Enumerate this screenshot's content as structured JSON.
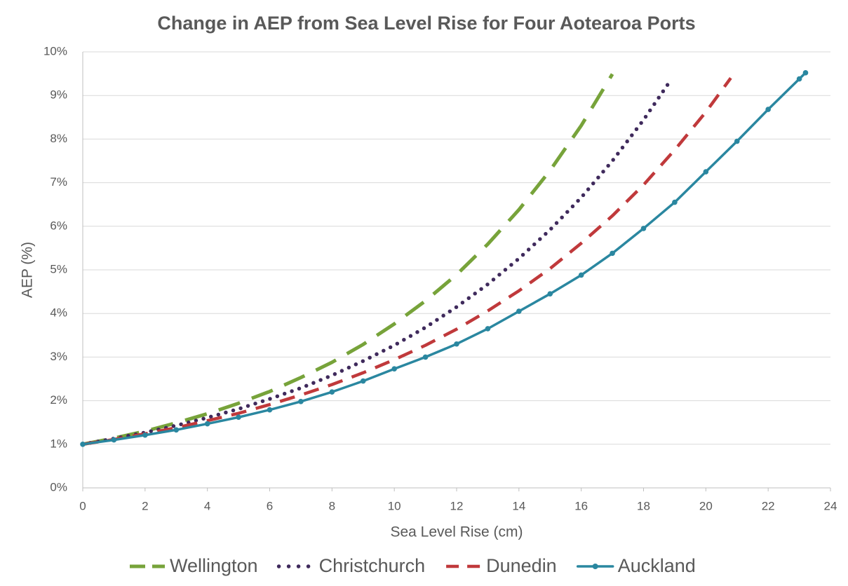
{
  "chart_data": {
    "type": "line",
    "title": "Change in AEP from Sea Level Rise for Four Aotearoa Ports",
    "x_label": "Sea Level Rise (cm)",
    "y_label": "AEP (%)",
    "xlim": [
      0,
      24
    ],
    "xticks": [
      0,
      2,
      4,
      6,
      8,
      10,
      12,
      14,
      16,
      18,
      20,
      22,
      24
    ],
    "ylim": [
      0,
      10
    ],
    "yticks": [
      {
        "value": 0,
        "label": "0%"
      },
      {
        "value": 1,
        "label": "1%"
      },
      {
        "value": 2,
        "label": "2%"
      },
      {
        "value": 3,
        "label": "3%"
      },
      {
        "value": 4,
        "label": "4%"
      },
      {
        "value": 5,
        "label": "5%"
      },
      {
        "value": 6,
        "label": "6%"
      },
      {
        "value": 7,
        "label": "7%"
      },
      {
        "value": 8,
        "label": "8%"
      },
      {
        "value": 9,
        "label": "9%"
      },
      {
        "value": 10,
        "label": "10%"
      }
    ],
    "grid": true,
    "legend": "bottom",
    "series": [
      {
        "name": "Wellington",
        "color": "#77a33a",
        "dash": "long",
        "markers": false,
        "x": [
          0,
          1,
          2,
          3,
          4,
          5,
          6,
          7,
          8,
          9,
          10,
          11,
          12,
          13,
          14,
          15,
          16,
          17
        ],
        "values": [
          1.0,
          1.14,
          1.3,
          1.49,
          1.7,
          1.94,
          2.21,
          2.53,
          2.88,
          3.29,
          3.76,
          4.29,
          4.89,
          5.59,
          6.38,
          7.28,
          8.31,
          9.49
        ]
      },
      {
        "name": "Christchurch",
        "color": "#3f2a5c",
        "dash": "dot",
        "markers": false,
        "x": [
          0,
          1,
          2,
          3,
          4,
          5,
          6,
          7,
          8,
          9,
          10,
          11,
          12,
          13,
          14,
          15,
          16,
          17,
          18,
          18.9
        ],
        "values": [
          1.0,
          1.13,
          1.27,
          1.43,
          1.61,
          1.81,
          2.04,
          2.29,
          2.58,
          2.91,
          3.27,
          3.68,
          4.15,
          4.67,
          5.26,
          5.92,
          6.66,
          7.5,
          8.44,
          9.38
        ]
      },
      {
        "name": "Dunedin",
        "color": "#c0393b",
        "dash": "medium",
        "markers": false,
        "x": [
          0,
          1,
          2,
          3,
          4,
          5,
          6,
          7,
          8,
          9,
          10,
          11,
          12,
          13,
          14,
          15,
          16,
          17,
          18,
          19,
          20,
          20.8
        ],
        "values": [
          1.0,
          1.11,
          1.24,
          1.38,
          1.54,
          1.71,
          1.91,
          2.13,
          2.37,
          2.64,
          2.94,
          3.27,
          3.64,
          4.06,
          4.52,
          5.03,
          5.61,
          6.24,
          6.95,
          7.75,
          8.62,
          9.4
        ]
      },
      {
        "name": "Auckland",
        "color": "#2a87a0",
        "dash": "solid",
        "markers": true,
        "x": [
          0,
          1,
          2,
          3,
          4,
          5,
          6,
          7,
          8,
          9,
          10,
          11,
          12,
          13,
          14,
          15,
          16,
          17,
          18,
          19,
          20,
          21,
          22,
          23,
          23.2
        ],
        "values": [
          1.0,
          1.1,
          1.21,
          1.33,
          1.47,
          1.62,
          1.79,
          1.98,
          2.2,
          2.45,
          2.73,
          3.0,
          3.3,
          3.65,
          4.05,
          4.45,
          4.88,
          5.38,
          5.95,
          6.55,
          7.25,
          7.95,
          8.68,
          9.38,
          9.52
        ]
      }
    ]
  }
}
